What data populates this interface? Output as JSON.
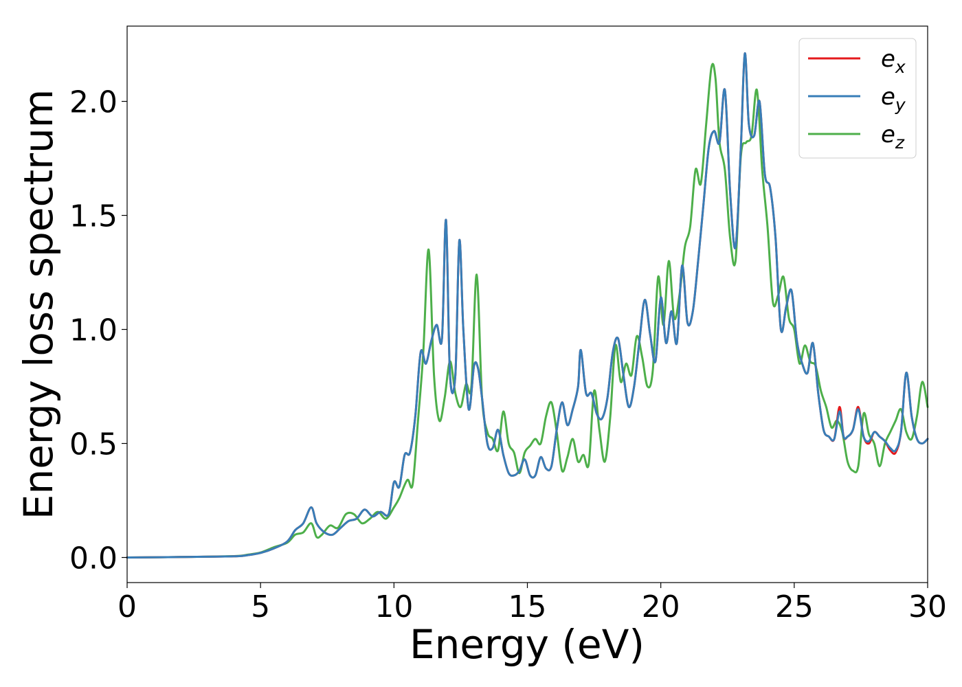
{
  "chart_data": {
    "type": "line",
    "xlabel": "Energy (eV)",
    "ylabel": "Energy loss spectrum",
    "xlim": [
      0,
      30
    ],
    "ylim": [
      -0.11,
      2.33
    ],
    "xticks": [
      "0",
      "5",
      "10",
      "15",
      "20",
      "25",
      "30"
    ],
    "yticks": [
      "0.0",
      "0.5",
      "1.0",
      "1.5",
      "2.0"
    ],
    "grid": false,
    "legend_position": "top-right",
    "legend": [
      {
        "base": "e",
        "sub": "x",
        "color": "#e41a1c"
      },
      {
        "base": "e",
        "sub": "y",
        "color": "#377eb8"
      },
      {
        "base": "e",
        "sub": "z",
        "color": "#4daf4a"
      }
    ],
    "series": [
      {
        "name": "e_x",
        "color": "#e41a1c",
        "x": [
          0,
          2,
          4,
          4.5,
          5,
          5.5,
          6,
          6.3,
          6.6,
          6.9,
          7.1,
          7.4,
          7.7,
          8,
          8.3,
          8.6,
          8.9,
          9.2,
          9.5,
          9.8,
          10,
          10.2,
          10.4,
          10.6,
          10.8,
          11,
          11.2,
          11.4,
          11.6,
          11.8,
          11.95,
          12.1,
          12.3,
          12.45,
          12.6,
          12.8,
          13,
          13.15,
          13.3,
          13.5,
          13.7,
          13.9,
          14.1,
          14.3,
          14.5,
          14.7,
          14.9,
          15.1,
          15.3,
          15.5,
          15.7,
          15.9,
          16.1,
          16.3,
          16.5,
          16.7,
          16.9,
          17,
          17.2,
          17.4,
          17.6,
          17.8,
          18,
          18.2,
          18.4,
          18.6,
          18.8,
          19,
          19.2,
          19.4,
          19.6,
          19.8,
          20,
          20.2,
          20.4,
          20.6,
          20.8,
          21,
          21.2,
          21.4,
          21.6,
          21.8,
          22,
          22.2,
          22.4,
          22.6,
          22.8,
          23,
          23.15,
          23.3,
          23.5,
          23.7,
          23.9,
          24.1,
          24.3,
          24.5,
          24.7,
          24.9,
          25.1,
          25.3,
          25.5,
          25.7,
          25.9,
          26.1,
          26.3,
          26.5,
          26.7,
          26.85,
          27,
          27.2,
          27.4,
          27.6,
          27.8,
          28,
          28.2,
          28.4,
          28.6,
          28.8,
          29,
          29.2,
          29.4,
          29.6,
          29.8,
          30
        ],
        "y": [
          0,
          0.002,
          0.005,
          0.01,
          0.02,
          0.04,
          0.07,
          0.12,
          0.15,
          0.22,
          0.15,
          0.11,
          0.1,
          0.13,
          0.16,
          0.17,
          0.21,
          0.18,
          0.2,
          0.19,
          0.33,
          0.31,
          0.45,
          0.46,
          0.62,
          0.9,
          0.85,
          0.95,
          1.02,
          0.96,
          1.48,
          0.8,
          0.8,
          1.39,
          1.0,
          0.65,
          0.84,
          0.83,
          0.7,
          0.5,
          0.48,
          0.56,
          0.45,
          0.37,
          0.36,
          0.38,
          0.43,
          0.36,
          0.36,
          0.44,
          0.39,
          0.4,
          0.56,
          0.68,
          0.58,
          0.65,
          0.75,
          0.91,
          0.72,
          0.72,
          0.63,
          0.61,
          0.7,
          0.9,
          0.96,
          0.8,
          0.66,
          0.75,
          0.95,
          1.13,
          0.98,
          0.86,
          1.14,
          0.94,
          1.08,
          0.94,
          1.28,
          1.03,
          1.08,
          1.3,
          1.55,
          1.8,
          1.87,
          1.82,
          2.05,
          1.6,
          1.36,
          1.8,
          2.21,
          1.9,
          1.85,
          2.0,
          1.68,
          1.62,
          1.4,
          1.0,
          1.1,
          1.17,
          0.95,
          0.85,
          0.81,
          0.94,
          0.72,
          0.56,
          0.53,
          0.52,
          0.66,
          0.53,
          0.53,
          0.56,
          0.66,
          0.53,
          0.5,
          0.55,
          0.53,
          0.51,
          0.47,
          0.46,
          0.55,
          0.81,
          0.62,
          0.52,
          0.5,
          0.52
        ]
      },
      {
        "name": "e_y",
        "color": "#377eb8",
        "x": [
          0,
          2,
          4,
          4.5,
          5,
          5.5,
          6,
          6.3,
          6.6,
          6.9,
          7.1,
          7.4,
          7.7,
          8,
          8.3,
          8.6,
          8.9,
          9.2,
          9.5,
          9.8,
          10,
          10.2,
          10.4,
          10.6,
          10.8,
          11,
          11.2,
          11.4,
          11.6,
          11.8,
          11.95,
          12.1,
          12.3,
          12.45,
          12.6,
          12.8,
          13,
          13.15,
          13.3,
          13.5,
          13.7,
          13.9,
          14.1,
          14.3,
          14.5,
          14.7,
          14.9,
          15.1,
          15.3,
          15.5,
          15.7,
          15.9,
          16.1,
          16.3,
          16.5,
          16.7,
          16.9,
          17,
          17.2,
          17.4,
          17.6,
          17.8,
          18,
          18.2,
          18.4,
          18.6,
          18.8,
          19,
          19.2,
          19.4,
          19.6,
          19.8,
          20,
          20.2,
          20.4,
          20.6,
          20.8,
          21,
          21.2,
          21.4,
          21.6,
          21.8,
          22,
          22.2,
          22.4,
          22.6,
          22.8,
          23,
          23.15,
          23.3,
          23.5,
          23.7,
          23.9,
          24.1,
          24.3,
          24.5,
          24.7,
          24.9,
          25.1,
          25.3,
          25.5,
          25.7,
          25.9,
          26.1,
          26.3,
          26.5,
          26.7,
          26.85,
          27,
          27.2,
          27.4,
          27.6,
          27.8,
          28,
          28.2,
          28.4,
          28.6,
          28.8,
          29,
          29.2,
          29.4,
          29.6,
          29.8,
          30
        ],
        "y": [
          0,
          0.002,
          0.005,
          0.01,
          0.02,
          0.04,
          0.07,
          0.12,
          0.15,
          0.22,
          0.15,
          0.11,
          0.1,
          0.13,
          0.16,
          0.17,
          0.21,
          0.18,
          0.2,
          0.19,
          0.33,
          0.31,
          0.45,
          0.46,
          0.62,
          0.9,
          0.85,
          0.95,
          1.02,
          0.96,
          1.48,
          0.8,
          0.8,
          1.39,
          1.0,
          0.65,
          0.84,
          0.83,
          0.7,
          0.5,
          0.48,
          0.56,
          0.45,
          0.37,
          0.36,
          0.38,
          0.43,
          0.36,
          0.36,
          0.44,
          0.39,
          0.4,
          0.56,
          0.68,
          0.58,
          0.65,
          0.75,
          0.91,
          0.72,
          0.72,
          0.63,
          0.61,
          0.7,
          0.9,
          0.96,
          0.8,
          0.66,
          0.75,
          0.95,
          1.13,
          0.98,
          0.86,
          1.14,
          0.94,
          1.08,
          0.94,
          1.28,
          1.03,
          1.08,
          1.3,
          1.55,
          1.8,
          1.87,
          1.82,
          2.05,
          1.6,
          1.36,
          1.8,
          2.21,
          1.9,
          1.85,
          2.0,
          1.68,
          1.62,
          1.4,
          1.0,
          1.1,
          1.17,
          0.95,
          0.85,
          0.81,
          0.94,
          0.72,
          0.56,
          0.53,
          0.52,
          0.64,
          0.53,
          0.53,
          0.56,
          0.65,
          0.53,
          0.51,
          0.55,
          0.53,
          0.51,
          0.48,
          0.47,
          0.55,
          0.81,
          0.62,
          0.52,
          0.5,
          0.52
        ]
      },
      {
        "name": "e_z",
        "color": "#4daf4a",
        "x": [
          0,
          2,
          4,
          4.5,
          5,
          5.5,
          6,
          6.3,
          6.6,
          6.9,
          7.1,
          7.3,
          7.6,
          7.9,
          8.2,
          8.5,
          8.8,
          9.1,
          9.4,
          9.7,
          10,
          10.2,
          10.5,
          10.7,
          10.9,
          11.1,
          11.3,
          11.5,
          11.7,
          11.9,
          12.1,
          12.3,
          12.5,
          12.7,
          12.9,
          13.1,
          13.3,
          13.5,
          13.7,
          13.9,
          14.1,
          14.3,
          14.5,
          14.7,
          14.9,
          15.1,
          15.3,
          15.5,
          15.7,
          15.9,
          16.1,
          16.3,
          16.5,
          16.7,
          16.9,
          17.1,
          17.3,
          17.5,
          17.7,
          17.9,
          18.1,
          18.3,
          18.5,
          18.7,
          18.9,
          19.1,
          19.3,
          19.5,
          19.7,
          19.9,
          20.1,
          20.3,
          20.5,
          20.7,
          20.9,
          21.1,
          21.3,
          21.5,
          21.7,
          21.9,
          22.05,
          22.2,
          22.4,
          22.6,
          22.8,
          23,
          23.2,
          23.4,
          23.6,
          23.8,
          24,
          24.2,
          24.4,
          24.6,
          24.8,
          25,
          25.2,
          25.4,
          25.6,
          25.8,
          26,
          26.2,
          26.4,
          26.6,
          26.8,
          27,
          27.2,
          27.4,
          27.6,
          27.8,
          28,
          28.2,
          28.4,
          28.6,
          28.8,
          29,
          29.2,
          29.4,
          29.6,
          29.8,
          30
        ],
        "y": [
          0,
          0.002,
          0.006,
          0.012,
          0.022,
          0.045,
          0.065,
          0.1,
          0.11,
          0.15,
          0.09,
          0.1,
          0.14,
          0.13,
          0.19,
          0.19,
          0.15,
          0.17,
          0.2,
          0.17,
          0.22,
          0.26,
          0.34,
          0.32,
          0.6,
          0.9,
          1.35,
          0.8,
          0.6,
          0.7,
          0.86,
          0.72,
          0.66,
          0.76,
          0.75,
          1.24,
          0.7,
          0.55,
          0.52,
          0.47,
          0.64,
          0.5,
          0.46,
          0.37,
          0.46,
          0.49,
          0.52,
          0.5,
          0.62,
          0.68,
          0.55,
          0.38,
          0.44,
          0.52,
          0.42,
          0.45,
          0.41,
          0.73,
          0.56,
          0.42,
          0.61,
          0.93,
          0.77,
          0.85,
          0.8,
          0.97,
          0.88,
          0.75,
          0.82,
          1.23,
          1.02,
          1.3,
          1.05,
          1.15,
          1.36,
          1.45,
          1.7,
          1.64,
          1.9,
          2.15,
          2.1,
          1.82,
          1.7,
          1.4,
          1.3,
          1.76,
          1.82,
          1.85,
          2.05,
          1.7,
          1.45,
          1.12,
          1.15,
          1.23,
          1.05,
          1.0,
          0.85,
          0.93,
          0.86,
          0.84,
          0.73,
          0.66,
          0.57,
          0.6,
          0.55,
          0.42,
          0.38,
          0.4,
          0.63,
          0.54,
          0.5,
          0.4,
          0.5,
          0.55,
          0.6,
          0.65,
          0.55,
          0.52,
          0.62,
          0.77,
          0.66
        ]
      }
    ]
  }
}
